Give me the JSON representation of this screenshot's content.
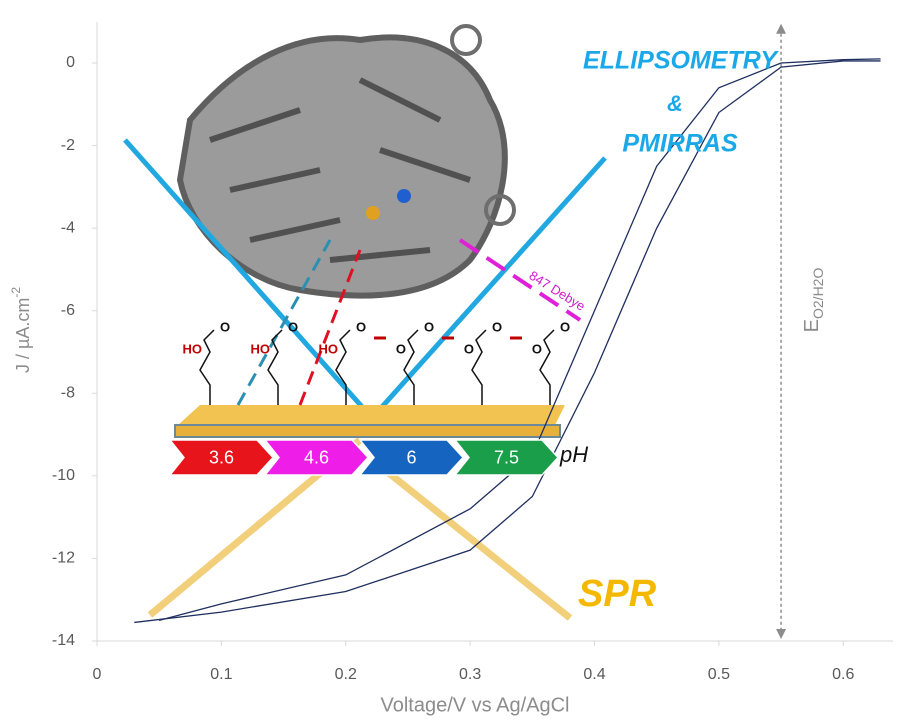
{
  "chart_data": {
    "type": "line",
    "x_label": "Voltage/V vs Ag/AgCl",
    "y_label": "J / µA.cm",
    "y_label_sup": "-2",
    "xlim": [
      0,
      0.64
    ],
    "ylim": [
      -14,
      1
    ],
    "xticks": [
      0,
      0.1,
      0.2,
      0.3,
      0.4,
      0.5,
      0.6
    ],
    "yticks": [
      0,
      -2,
      -4,
      -6,
      -8,
      -10,
      -12,
      -14
    ],
    "series": [
      {
        "color": "#1f2f5f",
        "x": [
          0.03,
          0.1,
          0.2,
          0.3,
          0.35,
          0.4,
          0.45,
          0.5,
          0.55,
          0.6,
          0.63
        ],
        "values": [
          -13.55,
          -13.3,
          -12.8,
          -11.8,
          -10.5,
          -7.5,
          -4,
          -1.2,
          -0.1,
          0.05,
          0.05
        ]
      },
      {
        "color": "#1f2f5f",
        "x": [
          0.05,
          0.1,
          0.2,
          0.3,
          0.35,
          0.4,
          0.45,
          0.5,
          0.55,
          0.6,
          0.63
        ],
        "values": [
          -13.5,
          -13.1,
          -12.4,
          -10.8,
          -9.5,
          -6,
          -2.5,
          -0.6,
          0,
          0.08,
          0.1
        ]
      }
    ],
    "potential_line_x": 0.55,
    "potential_label": "E",
    "potential_subscript": "O2/H2O",
    "annotations": {
      "ellipsometry": "ELLIPSOMETRY",
      "and": "&",
      "pmirras": "PMIRRAS",
      "spr": "SPR",
      "dipole": "847 Debye",
      "ph": "pH"
    },
    "ph_steps": [
      {
        "label": "3.6",
        "color": "#e8141c"
      },
      {
        "label": "4.6",
        "color": "#ee1ee8"
      },
      {
        "label": "6",
        "color": "#1565c0"
      },
      {
        "label": "7.5",
        "color": "#1a9e4a"
      }
    ],
    "molecules": [
      {
        "left": "HO",
        "right": "O"
      },
      {
        "left": "HO",
        "right": "O"
      },
      {
        "left": "HO",
        "right": "O"
      },
      {
        "left": "O",
        "right": "O"
      },
      {
        "left": "O",
        "right": "O"
      },
      {
        "left": "O",
        "right": "O"
      }
    ]
  }
}
